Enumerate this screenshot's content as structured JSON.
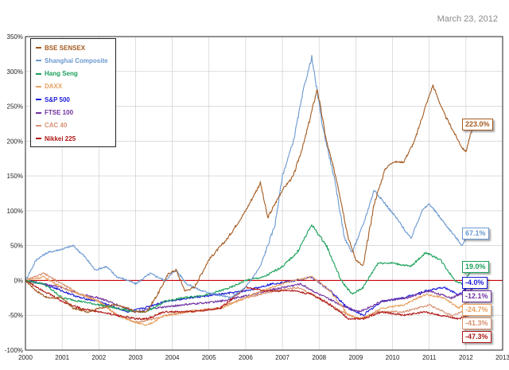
{
  "date_label": "March 23, 2012",
  "colors": {
    "bse": "#a45a20",
    "shanghai": "#6a98d0",
    "hangseng": "#1aa05a",
    "daxx": "#e8a060",
    "sp500": "#1a1ad8",
    "ftse": "#7030a0",
    "cac": "#d89070",
    "nikkei": "#b01818",
    "zero_line": "#cc0000"
  },
  "chart_data": {
    "type": "line",
    "title": "",
    "xlabel": "",
    "ylabel": "",
    "x_ticks": [
      "2000",
      "2001",
      "2002",
      "2003",
      "2004",
      "2005",
      "2006",
      "2007",
      "2008",
      "2009",
      "2010",
      "2011",
      "2012",
      "2013"
    ],
    "y_ticks": [
      "350%",
      "300%",
      "250%",
      "200%",
      "150%",
      "100%",
      "50%",
      "0%",
      "-50%",
      "-100%"
    ],
    "xlim": [
      2000,
      2013
    ],
    "ylim": [
      -100,
      350
    ],
    "grid": true,
    "legend_position": "top-left",
    "series": [
      {
        "name": "BSE SENSEX",
        "color_key": "bse",
        "end_label": "223.0%",
        "x": [
          2000,
          2000.3,
          2000.6,
          2001,
          2001.3,
          2001.7,
          2002,
          2002.4,
          2002.8,
          2003,
          2003.3,
          2003.6,
          2003.9,
          2004.1,
          2004.35,
          2004.6,
          2005,
          2005.5,
          2006,
          2006.4,
          2006.6,
          2007,
          2007.3,
          2007.6,
          2007.95,
          2008.2,
          2008.5,
          2008.8,
          2009.0,
          2009.2,
          2009.5,
          2009.8,
          2010,
          2010.3,
          2010.6,
          2010.9,
          2011.1,
          2011.4,
          2011.7,
          2011.9,
          2012,
          2012.2
        ],
        "y": [
          0,
          -15,
          -25,
          -25,
          -40,
          -45,
          -40,
          -35,
          -40,
          -45,
          -45,
          -20,
          10,
          15,
          -15,
          -10,
          30,
          60,
          100,
          140,
          90,
          130,
          150,
          200,
          275,
          200,
          140,
          60,
          30,
          20,
          110,
          160,
          170,
          170,
          200,
          250,
          280,
          240,
          210,
          190,
          185,
          223
        ]
      },
      {
        "name": "Shanghai Composite",
        "color_key": "shanghai",
        "end_label": "67.1%",
        "x": [
          2000,
          2000.3,
          2000.6,
          2001,
          2001.3,
          2001.6,
          2001.9,
          2002.2,
          2002.5,
          2002.8,
          2003,
          2003.4,
          2003.8,
          2004.1,
          2004.4,
          2004.8,
          2005.2,
          2005.6,
          2006,
          2006.4,
          2006.8,
          2007,
          2007.3,
          2007.6,
          2007.8,
          2008.1,
          2008.4,
          2008.7,
          2008.9,
          2009.2,
          2009.5,
          2009.8,
          2010.1,
          2010.5,
          2010.8,
          2011,
          2011.3,
          2011.6,
          2011.9,
          2012.1,
          2012.2
        ],
        "y": [
          0,
          30,
          40,
          45,
          50,
          35,
          15,
          20,
          5,
          0,
          -5,
          10,
          0,
          15,
          -5,
          -15,
          -20,
          -25,
          -10,
          20,
          80,
          150,
          200,
          280,
          320,
          220,
          150,
          60,
          40,
          80,
          130,
          110,
          90,
          60,
          100,
          110,
          90,
          70,
          50,
          70,
          67
        ]
      },
      {
        "name": "Hang Seng",
        "color_key": "hangseng",
        "end_label": "19.0%",
        "x": [
          2000,
          2000.5,
          2001,
          2001.5,
          2002,
          2002.5,
          2003,
          2003.3,
          2003.8,
          2004.3,
          2005,
          2005.6,
          2006,
          2006.5,
          2007,
          2007.4,
          2007.8,
          2008.2,
          2008.6,
          2008.9,
          2009.2,
          2009.6,
          2010,
          2010.5,
          2010.9,
          2011.3,
          2011.7,
          2011.9,
          2012.2
        ],
        "y": [
          0,
          -5,
          -25,
          -30,
          -35,
          -40,
          -45,
          -45,
          -30,
          -25,
          -20,
          -10,
          0,
          5,
          20,
          40,
          80,
          50,
          0,
          -20,
          -10,
          25,
          25,
          20,
          40,
          30,
          0,
          -5,
          19
        ]
      },
      {
        "name": "DAXX",
        "color_key": "daxx",
        "end_label": "-24.7%",
        "x": [
          2000,
          2000.5,
          2001,
          2001.5,
          2002,
          2002.5,
          2003,
          2003.3,
          2003.8,
          2004.5,
          2005.3,
          2006,
          2006.7,
          2007.3,
          2007.8,
          2008.3,
          2008.8,
          2009.2,
          2009.7,
          2010.3,
          2010.9,
          2011.4,
          2011.8,
          2012.2
        ],
        "y": [
          0,
          5,
          -10,
          -20,
          -30,
          -50,
          -60,
          -65,
          -50,
          -45,
          -40,
          -25,
          -10,
          0,
          5,
          -15,
          -50,
          -55,
          -40,
          -35,
          -20,
          -25,
          -40,
          -25
        ]
      },
      {
        "name": "S&P 500",
        "color_key": "sp500",
        "end_label": "-4.0%",
        "x": [
          2000,
          2000.5,
          2001,
          2001.5,
          2002,
          2002.5,
          2002.8,
          2003.2,
          2003.8,
          2004.5,
          2005.3,
          2006,
          2006.7,
          2007.4,
          2007.8,
          2008.3,
          2008.8,
          2009.2,
          2009.7,
          2010.3,
          2010.9,
          2011.4,
          2011.8,
          2012.2
        ],
        "y": [
          0,
          -5,
          -15,
          -25,
          -30,
          -40,
          -45,
          -40,
          -30,
          -25,
          -20,
          -15,
          -5,
          0,
          5,
          -15,
          -40,
          -50,
          -30,
          -25,
          -15,
          -10,
          -20,
          -4
        ]
      },
      {
        "name": "FTSE 100",
        "color_key": "ftse",
        "end_label": "-12.1%",
        "x": [
          2000,
          2000.5,
          2001,
          2001.5,
          2002,
          2002.5,
          2003,
          2003.5,
          2004.3,
          2005.3,
          2006.2,
          2007,
          2007.5,
          2008,
          2008.6,
          2009.1,
          2009.7,
          2010.4,
          2011,
          2011.6,
          2012.2
        ],
        "y": [
          0,
          -5,
          -10,
          -20,
          -25,
          -35,
          -45,
          -40,
          -35,
          -30,
          -20,
          -10,
          -5,
          -20,
          -35,
          -45,
          -30,
          -25,
          -15,
          -25,
          -12
        ]
      },
      {
        "name": "CAC 40",
        "color_key": "cac",
        "end_label": "-41.3%",
        "x": [
          2000,
          2000.5,
          2001,
          2001.5,
          2002,
          2002.5,
          2003,
          2003.5,
          2004.3,
          2005.2,
          2006,
          2006.8,
          2007.4,
          2008,
          2008.6,
          2009.1,
          2009.6,
          2010.3,
          2011,
          2011.6,
          2012.2
        ],
        "y": [
          0,
          10,
          -5,
          -20,
          -30,
          -50,
          -60,
          -55,
          -45,
          -40,
          -25,
          -15,
          -10,
          -25,
          -45,
          -55,
          -45,
          -45,
          -35,
          -50,
          -41
        ]
      },
      {
        "name": "Nikkei 225",
        "color_key": "nikkei",
        "end_label": "-47.3%",
        "x": [
          2000,
          2000.5,
          2001,
          2001.5,
          2002,
          2002.5,
          2003,
          2003.3,
          2003.8,
          2004.5,
          2005.3,
          2006,
          2006.5,
          2007.3,
          2007.8,
          2008.3,
          2008.8,
          2009.2,
          2009.7,
          2010.3,
          2010.9,
          2011.3,
          2011.8,
          2012.2
        ],
        "y": [
          0,
          -15,
          -30,
          -40,
          -45,
          -50,
          -55,
          -55,
          -45,
          -45,
          -40,
          -10,
          -15,
          -15,
          -20,
          -35,
          -55,
          -55,
          -45,
          -50,
          -45,
          -50,
          -55,
          -47
        ]
      }
    ]
  }
}
